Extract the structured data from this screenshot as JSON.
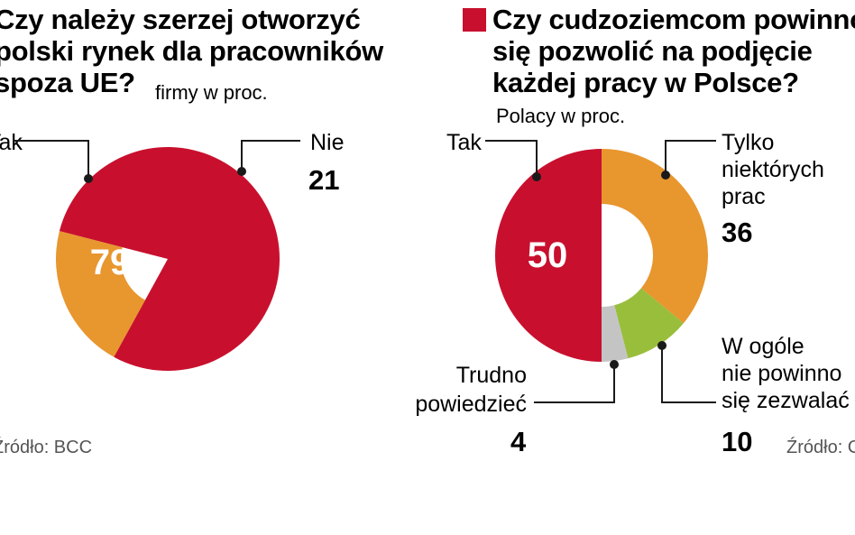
{
  "colors": {
    "red": "#c8102e",
    "orange": "#e8962e",
    "green": "#99be3c",
    "gray": "#c4c4c4"
  },
  "charts": [
    {
      "title_lines": [
        "Czy należy szerzej otworzyć",
        "polski rynek dla pracowników",
        "spoza UE?"
      ],
      "subtitle": "firmy w proc.",
      "source": "Źródło: BCC"
    },
    {
      "title_lines": [
        "Czy cudzoziemcom powinno",
        "się pozwolić na podjęcie",
        "każdej pracy w Polsce?"
      ],
      "subtitle": "Polacy w proc.",
      "source": "Źródło: CBOS"
    }
  ],
  "chart_data": [
    {
      "type": "pie",
      "categories": [
        "Tak",
        "Nie"
      ],
      "values": [
        79,
        21
      ],
      "colors": [
        "#c8102e",
        "#e8962e"
      ],
      "title": "Czy należy szerzej otworzyć polski rynek dla pracowników spoza UE?",
      "subtitle": "firmy w proc."
    },
    {
      "type": "pie",
      "categories": [
        "Tak",
        "Tylko niektórych prac",
        "W ogóle nie powinno się zezwalać",
        "Trudno powiedzieć"
      ],
      "label_lines": [
        [
          "Tak"
        ],
        [
          "Tylko",
          "niektórych",
          "prac"
        ],
        [
          "W ogóle",
          "nie powinno",
          "się zezwalać"
        ],
        [
          "Trudno",
          "powiedzieć"
        ]
      ],
      "values": [
        50,
        36,
        10,
        4
      ],
      "colors": [
        "#c8102e",
        "#e8962e",
        "#99be3c",
        "#c4c4c4"
      ],
      "title": "Czy cudzoziemcom powinno się pozwolić na podjęcie każdej pracy w Polsce?",
      "subtitle": "Polacy w proc."
    }
  ]
}
